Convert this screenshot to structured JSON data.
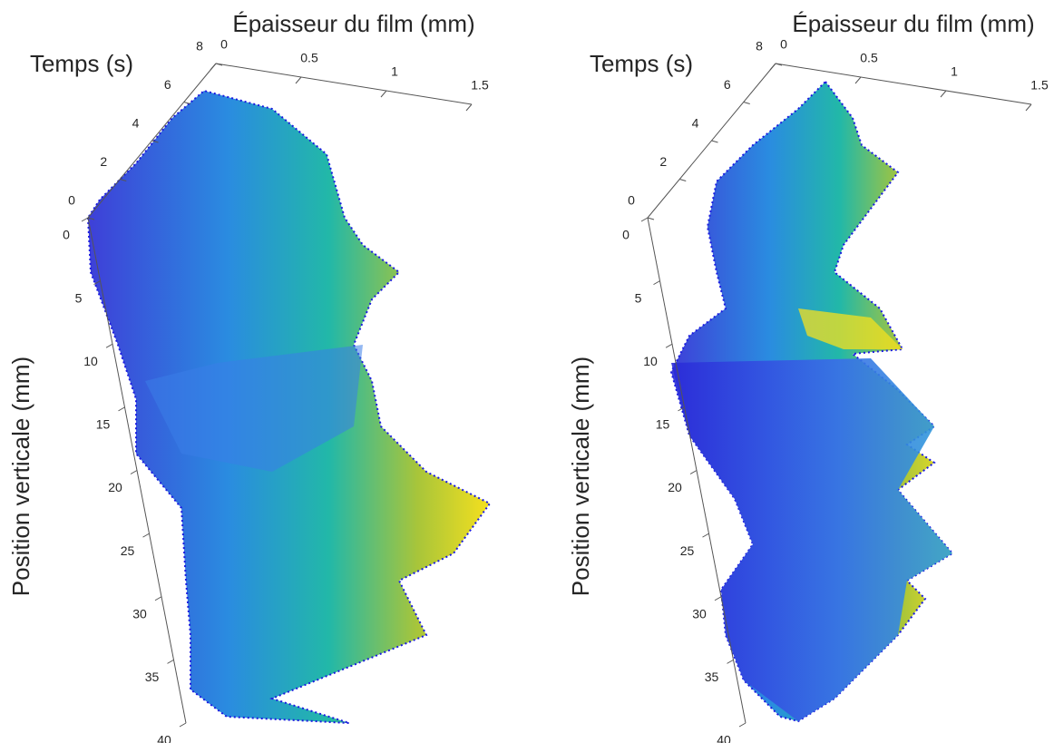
{
  "chart_data": [
    {
      "type": "surface3d",
      "xlabel": "Épaisseur du film (mm)",
      "ylabel": "Temps (s)",
      "zlabel": "Position verticale (mm)",
      "xlim": [
        0,
        1.5
      ],
      "xticks": [
        0,
        0.5,
        1,
        1.5
      ],
      "ylim": [
        0,
        8
      ],
      "yticks": [
        0,
        2,
        4,
        6,
        8
      ],
      "zlim": [
        0,
        40
      ],
      "zticks": [
        0,
        5,
        10,
        15,
        20,
        25,
        30,
        35,
        40
      ]
    },
    {
      "type": "surface3d",
      "xlabel": "Épaisseur du film (mm)",
      "ylabel": "Temps (s)",
      "zlabel": "Position verticale (mm)",
      "xlim": [
        0,
        1.5
      ],
      "xticks": [
        0,
        0.5,
        1,
        1.5
      ],
      "ylim": [
        0,
        8
      ],
      "yticks": [
        0,
        2,
        4,
        6,
        8
      ],
      "zlim": [
        0,
        40
      ],
      "zticks": [
        0,
        5,
        10,
        15,
        20,
        25,
        30,
        35,
        40
      ]
    }
  ]
}
